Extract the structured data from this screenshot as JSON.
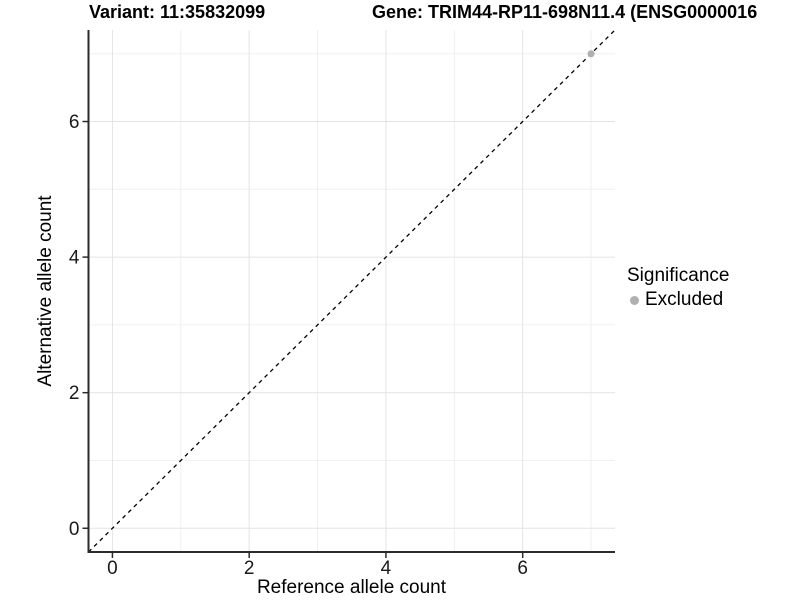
{
  "titles": {
    "variant": "Variant: 11:35832099",
    "gene": "Gene: TRIM44-RP11-698N11.4 (ENSG0000016"
  },
  "axes": {
    "x_label": "Reference allele count",
    "y_label": "Alternative allele count",
    "x_tick_labels": [
      "0",
      "2",
      "4",
      "6"
    ],
    "y_tick_labels": [
      "0",
      "2",
      "4",
      "6"
    ]
  },
  "legend": {
    "title": "Significance",
    "items": [
      {
        "label": "Excluded",
        "color": "#b0b0b0"
      }
    ]
  },
  "colors": {
    "background": "#ffffff",
    "major_gridline": "#e4e4e4",
    "minor_gridline": "#f0f0f0",
    "axis_line": "#2b2b2b",
    "tick_text": "#1a1a1a",
    "identity_line": "#000000",
    "excluded_point": "#b0b0b0"
  },
  "chart_data": {
    "type": "scatter",
    "title": "Variant: 11:35832099 | Gene: TRIM44-RP11-698N11.4 (ENSG0000016",
    "xlabel": "Reference allele count",
    "ylabel": "Alternative allele count",
    "xlim": [
      -0.35,
      7.35
    ],
    "ylim": [
      -0.35,
      7.35
    ],
    "xticks": [
      0,
      2,
      4,
      6
    ],
    "yticks": [
      0,
      2,
      4,
      6
    ],
    "minor_ticks": [
      1,
      3,
      5,
      7
    ],
    "grid": true,
    "legend_position": "right",
    "legend_title": "Significance",
    "series": [
      {
        "name": "Excluded",
        "color": "#b0b0b0",
        "points": [
          [
            7,
            7
          ]
        ]
      }
    ],
    "reference_line": {
      "kind": "identity",
      "style": "dashed",
      "color": "#000000"
    }
  }
}
